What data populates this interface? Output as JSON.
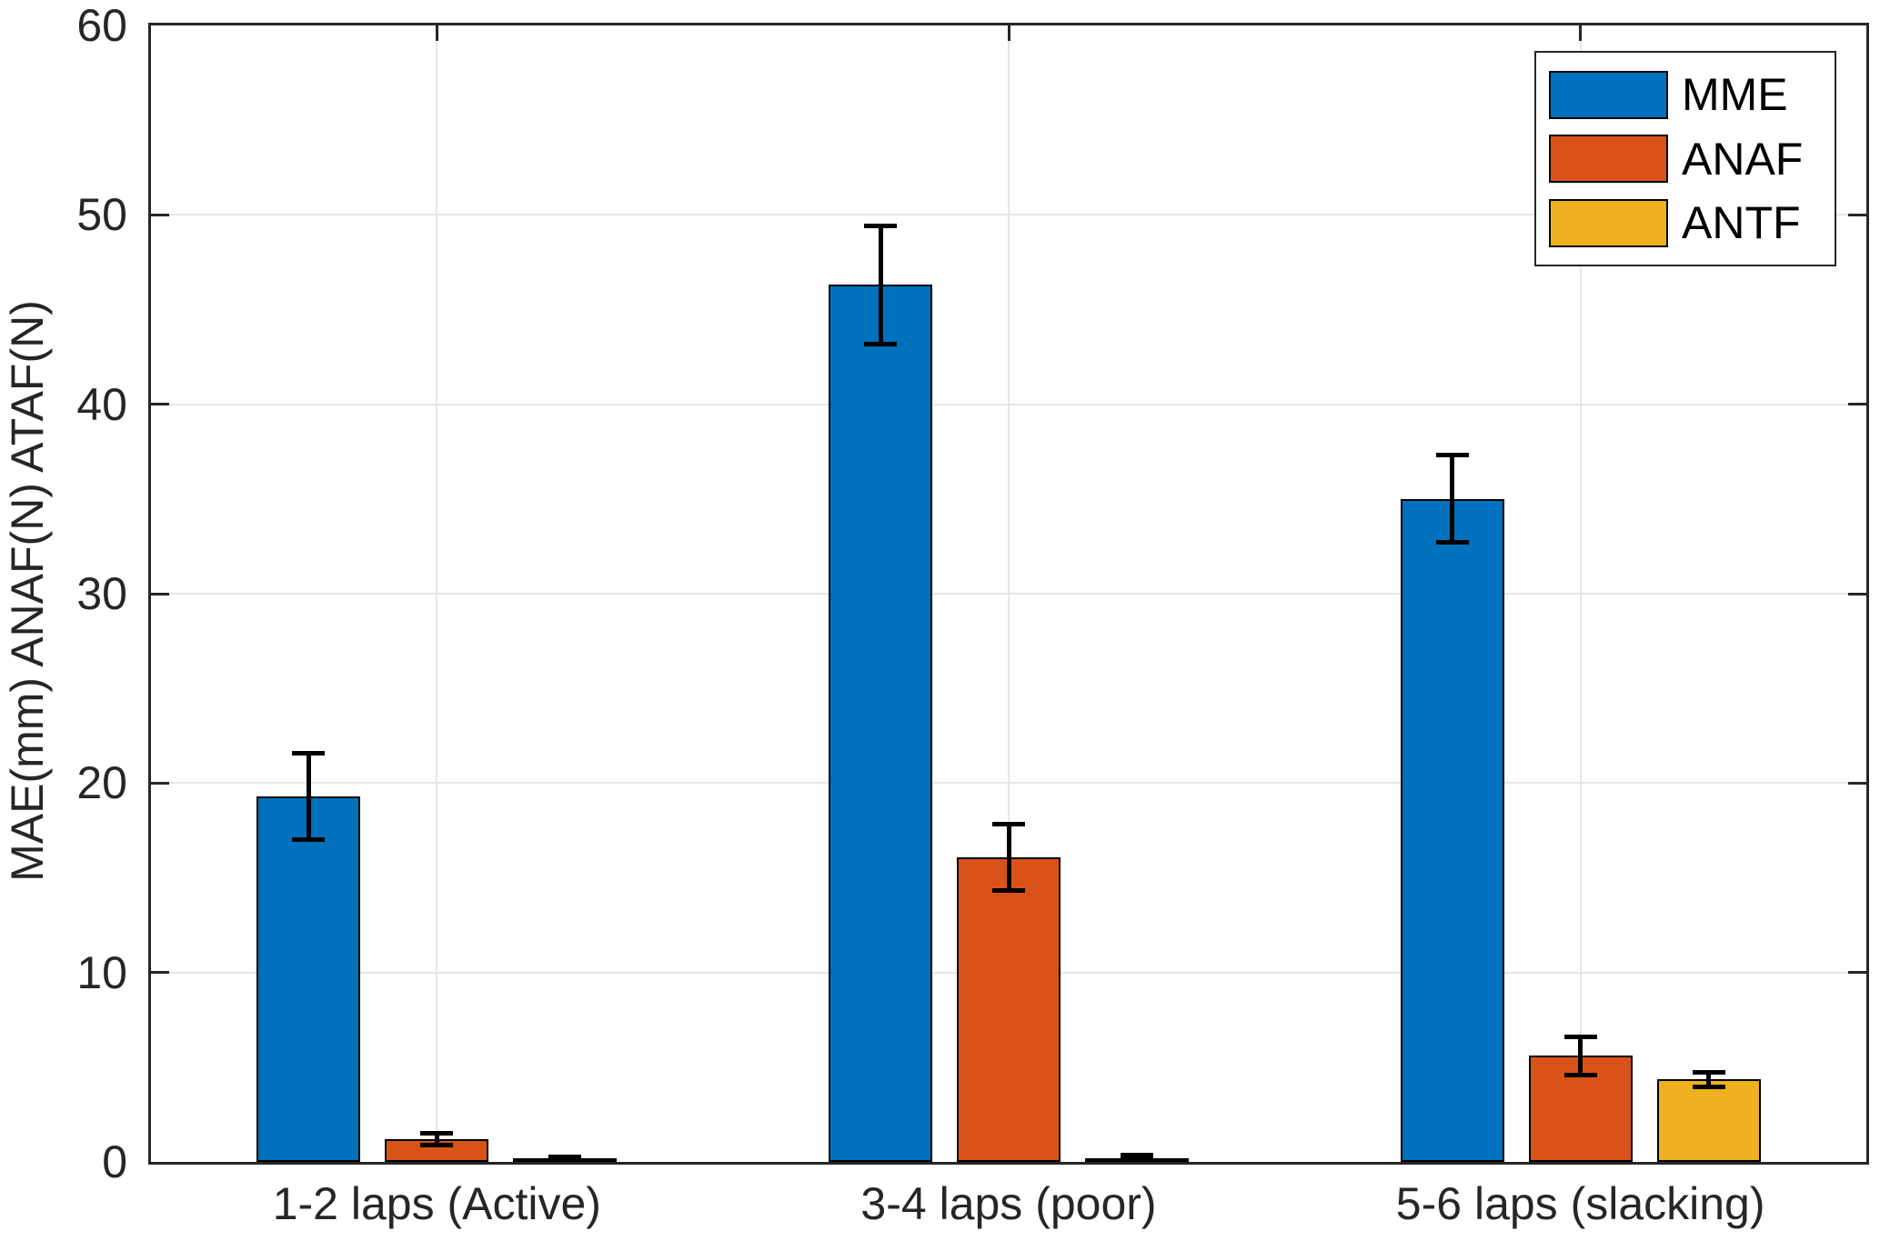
{
  "chart_data": {
    "type": "bar",
    "title": "",
    "categories": [
      "1-2 laps (Active)",
      "3-4 laps (poor)",
      "5-6 laps (slacking)"
    ],
    "series": [
      {
        "name": "MME",
        "color": "#0072BD",
        "values": [
          19.3,
          46.3,
          35.0
        ],
        "errors": [
          2.3,
          3.1,
          2.3
        ]
      },
      {
        "name": "ANAF",
        "color": "#D95319",
        "values": [
          1.2,
          16.1,
          5.6
        ],
        "errors": [
          0.3,
          1.75,
          1.0
        ]
      },
      {
        "name": "ANTF",
        "color": "#EDB120",
        "values": [
          0.15,
          0.2,
          4.35
        ],
        "errors": [
          0.12,
          0.15,
          0.4
        ]
      }
    ],
    "xlabel": "",
    "ylabel": "MAE(mm) ANAF(N) ATAF(N)",
    "ylim": [
      0,
      60
    ],
    "yticks": [
      0,
      10,
      20,
      30,
      40,
      50,
      60
    ],
    "grid": true,
    "legend": {
      "position": "top-right",
      "entries": [
        "MME",
        "ANAF",
        "ANTF"
      ]
    }
  },
  "style_colors": {
    "axis": "#262626",
    "grid": "#e6e6e6",
    "bar_edge": "#000000",
    "error_bar": "#000000",
    "background": "#ffffff"
  }
}
